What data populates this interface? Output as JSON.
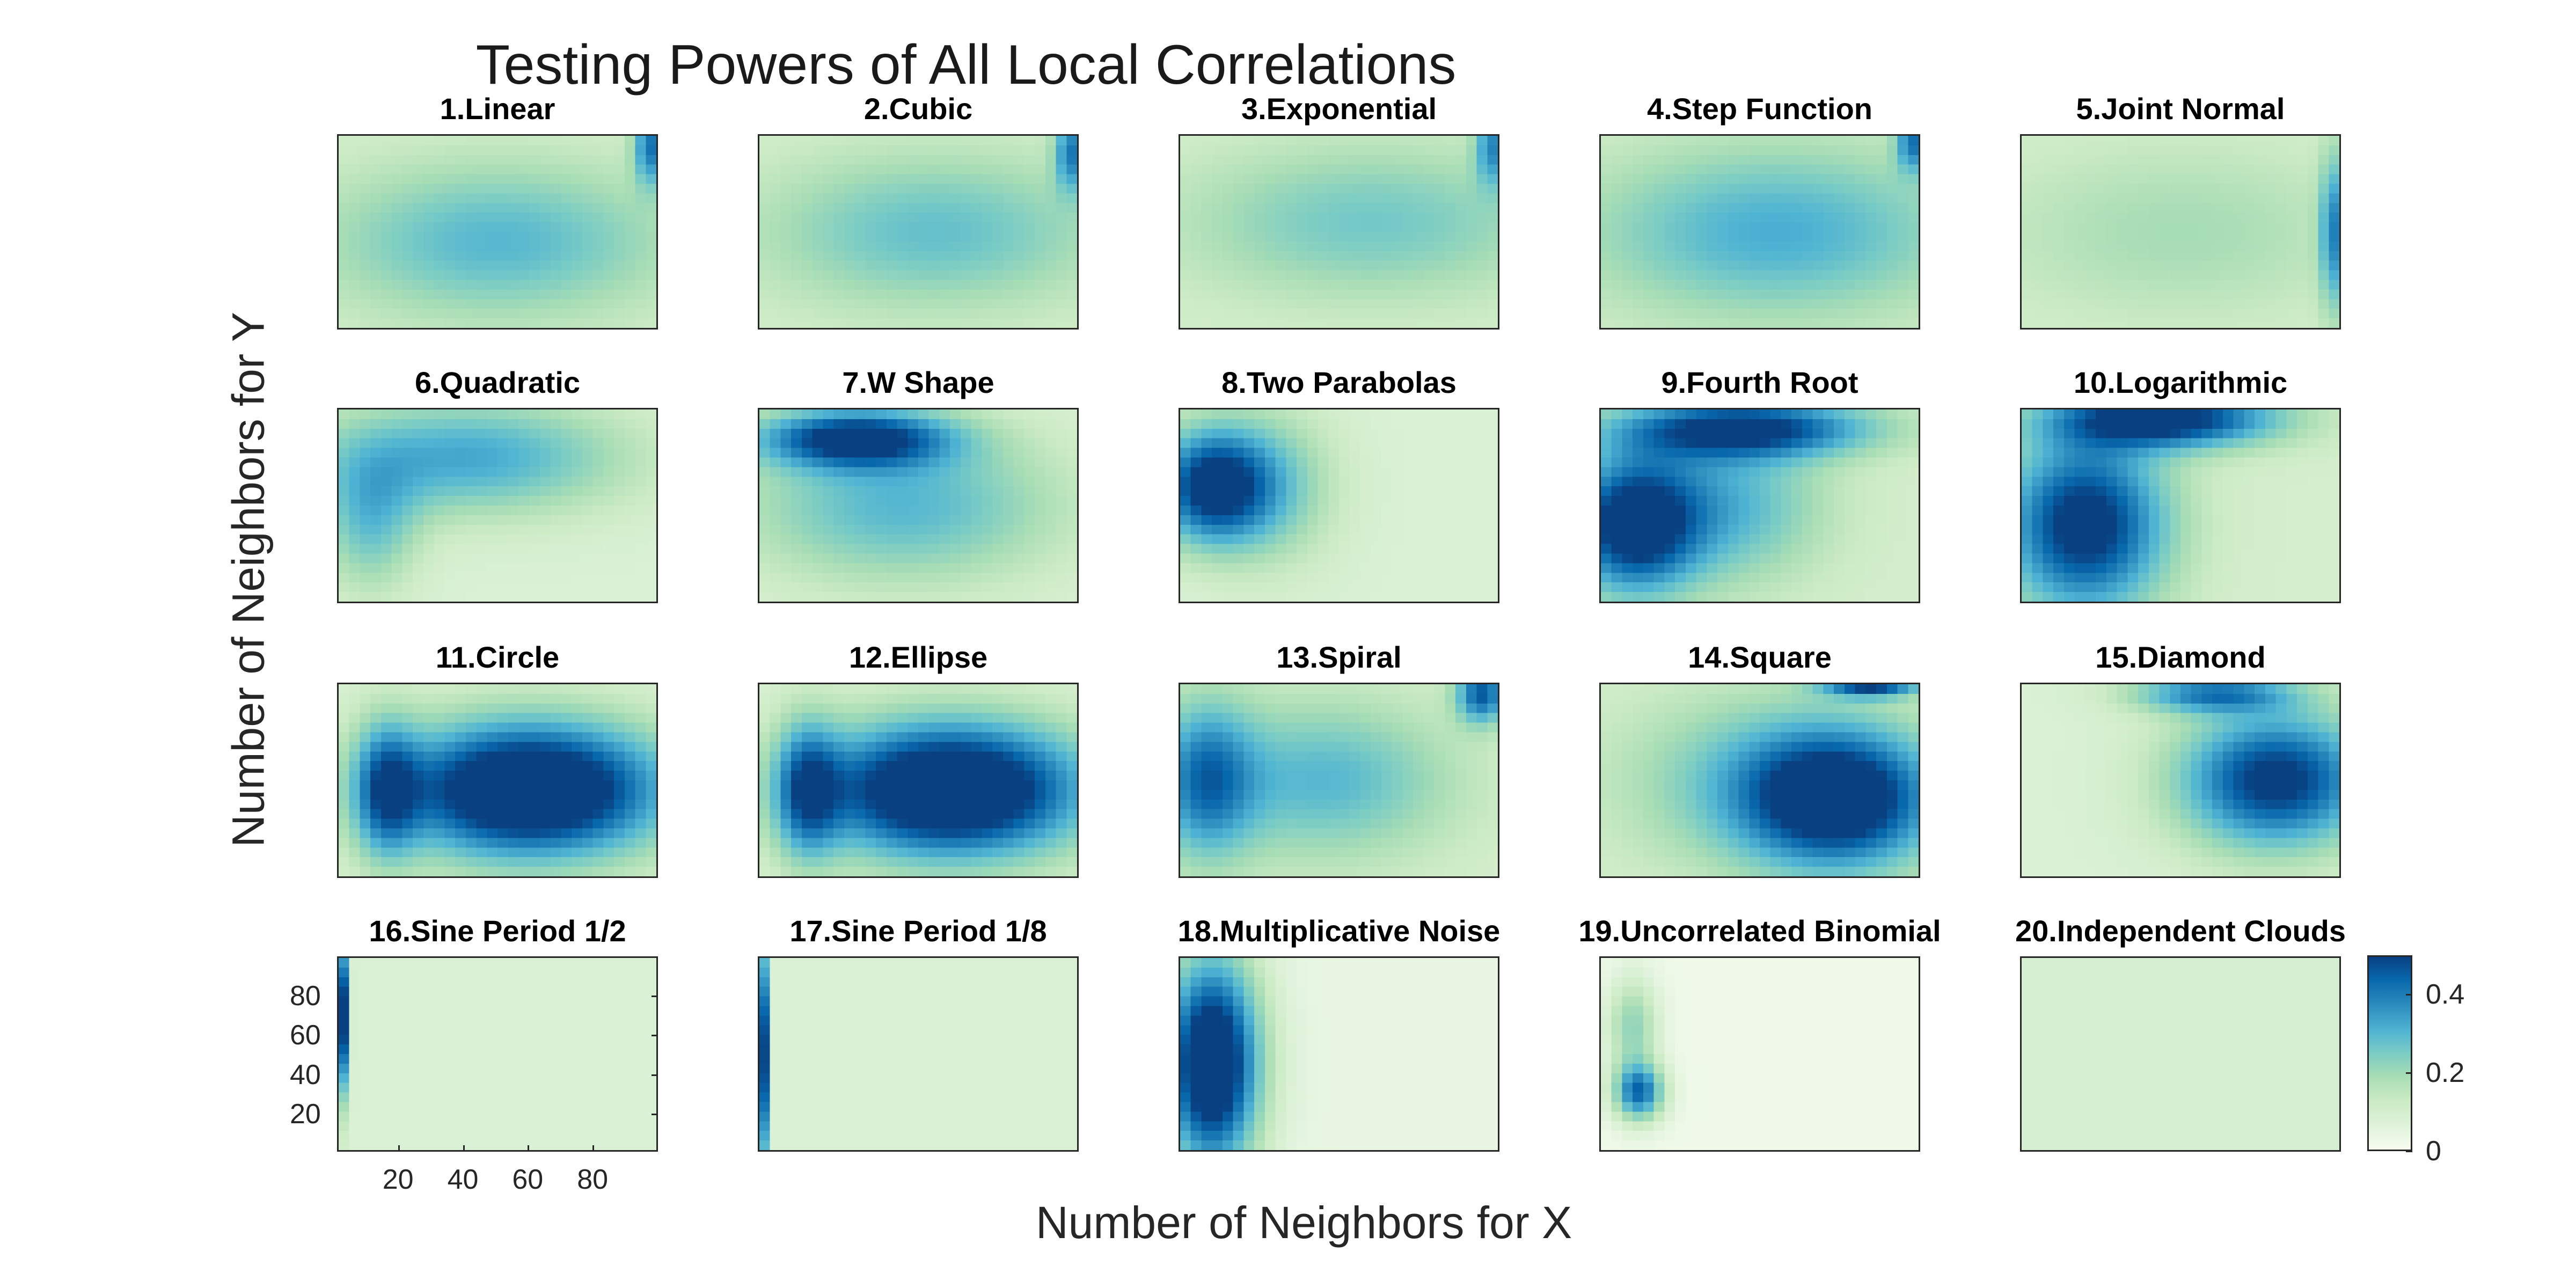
{
  "figure": {
    "title": "Testing Powers of All Local Correlations",
    "xlabel": "Number of Neighbors for X",
    "ylabel": "Number of Neighbors for Y"
  },
  "colors": {
    "colormap": [
      "#f7fcf0",
      "#e0f3db",
      "#ccebc5",
      "#a8ddb5",
      "#7bccc4",
      "#4eb3d3",
      "#2b8cbe",
      "#0868ac",
      "#084081"
    ]
  },
  "chart_data": {
    "type": "heatmap",
    "layout": "4x5 grid of heatmaps sharing one colorbar",
    "x_range": [
      1,
      100
    ],
    "y_range": [
      1,
      100
    ],
    "x_ticks": [
      20,
      40,
      60,
      80
    ],
    "y_ticks": [
      20,
      40,
      60,
      80
    ],
    "color_range": [
      0,
      0.5
    ],
    "colorbar_ticks": [
      0,
      0.2,
      0.4
    ],
    "colorbar_tick_labels": [
      "0",
      "0.2",
      "0.4"
    ],
    "panels": [
      {
        "title": "1.Linear",
        "base": 0.1,
        "blobs": [
          [
            0.5,
            0.45,
            0.55,
            0.4,
            0.2
          ],
          [
            0.98,
            0.95,
            0.05,
            0.2,
            0.3
          ]
        ]
      },
      {
        "title": "2.Cubic",
        "base": 0.1,
        "blobs": [
          [
            0.55,
            0.5,
            0.55,
            0.4,
            0.18
          ],
          [
            0.98,
            0.92,
            0.05,
            0.2,
            0.28
          ]
        ]
      },
      {
        "title": "3.Exponential",
        "base": 0.1,
        "blobs": [
          [
            0.6,
            0.55,
            0.6,
            0.4,
            0.16
          ],
          [
            0.98,
            0.95,
            0.05,
            0.2,
            0.25
          ]
        ]
      },
      {
        "title": "4.Step Function",
        "base": 0.1,
        "blobs": [
          [
            0.55,
            0.5,
            0.6,
            0.45,
            0.22
          ],
          [
            0.98,
            0.97,
            0.05,
            0.15,
            0.28
          ]
        ]
      },
      {
        "title": "5.Joint Normal",
        "base": 0.1,
        "blobs": [
          [
            0.5,
            0.5,
            0.6,
            0.45,
            0.09
          ],
          [
            0.98,
            0.5,
            0.04,
            0.4,
            0.25
          ]
        ]
      },
      {
        "title": "6.Quadratic",
        "base": 0.08,
        "blobs": [
          [
            0.4,
            0.75,
            0.5,
            0.3,
            0.25
          ],
          [
            0.1,
            0.4,
            0.15,
            0.35,
            0.18
          ]
        ]
      },
      {
        "title": "7.W Shape",
        "base": 0.08,
        "blobs": [
          [
            0.3,
            0.85,
            0.3,
            0.15,
            0.42
          ],
          [
            0.45,
            0.5,
            0.5,
            0.4,
            0.22
          ]
        ]
      },
      {
        "title": "8.Two Parabolas",
        "base": 0.08,
        "blobs": [
          [
            0.1,
            0.6,
            0.18,
            0.3,
            0.45
          ],
          [
            0.3,
            0.6,
            0.2,
            0.4,
            0.15
          ]
        ]
      },
      {
        "title": "9.Fourth Root",
        "base": 0.1,
        "blobs": [
          [
            0.1,
            0.4,
            0.2,
            0.35,
            0.45
          ],
          [
            0.45,
            0.9,
            0.4,
            0.15,
            0.4
          ],
          [
            0.4,
            0.5,
            0.3,
            0.4,
            0.2
          ]
        ]
      },
      {
        "title": "10.Logarithmic",
        "base": 0.1,
        "blobs": [
          [
            0.2,
            0.4,
            0.25,
            0.45,
            0.45
          ],
          [
            0.45,
            0.95,
            0.35,
            0.15,
            0.45
          ]
        ]
      },
      {
        "title": "11.Circle",
        "base": 0.08,
        "blobs": [
          [
            0.6,
            0.45,
            0.42,
            0.35,
            0.6
          ],
          [
            0.15,
            0.45,
            0.1,
            0.35,
            0.3
          ]
        ]
      },
      {
        "title": "12.Ellipse",
        "base": 0.08,
        "blobs": [
          [
            0.6,
            0.45,
            0.42,
            0.35,
            0.6
          ],
          [
            0.15,
            0.45,
            0.1,
            0.35,
            0.3
          ]
        ]
      },
      {
        "title": "13.Spiral",
        "base": 0.1,
        "blobs": [
          [
            0.45,
            0.5,
            0.4,
            0.4,
            0.2
          ],
          [
            0.08,
            0.5,
            0.15,
            0.4,
            0.28
          ],
          [
            0.95,
            0.95,
            0.08,
            0.15,
            0.35
          ]
        ]
      },
      {
        "title": "14.Square",
        "base": 0.1,
        "blobs": [
          [
            0.75,
            0.4,
            0.3,
            0.35,
            0.45
          ],
          [
            0.5,
            0.5,
            0.45,
            0.45,
            0.15
          ],
          [
            0.85,
            0.98,
            0.15,
            0.05,
            0.35
          ]
        ]
      },
      {
        "title": "15.Diamond",
        "base": 0.08,
        "blobs": [
          [
            0.8,
            0.5,
            0.3,
            0.35,
            0.45
          ],
          [
            0.6,
            0.95,
            0.25,
            0.1,
            0.3
          ]
        ]
      },
      {
        "title": "16.Sine Period 1/2",
        "base": 0.08,
        "blobs": [
          [
            0.01,
            0.7,
            0.02,
            0.4,
            0.5
          ]
        ]
      },
      {
        "title": "17.Sine Period 1/8",
        "base": 0.08,
        "blobs": [
          [
            0.01,
            0.5,
            0.015,
            0.6,
            0.5
          ]
        ]
      },
      {
        "title": "18.Multiplicative Noise",
        "base": 0.04,
        "blobs": [
          [
            0.1,
            0.45,
            0.15,
            0.55,
            0.6
          ]
        ]
      },
      {
        "title": "19.Uncorrelated Binomial",
        "base": 0.02,
        "blobs": [
          [
            0.12,
            0.3,
            0.08,
            0.15,
            0.4
          ],
          [
            0.1,
            0.65,
            0.08,
            0.25,
            0.2
          ]
        ]
      },
      {
        "title": "20.Independent Clouds",
        "base": 0.09,
        "blobs": []
      }
    ]
  }
}
